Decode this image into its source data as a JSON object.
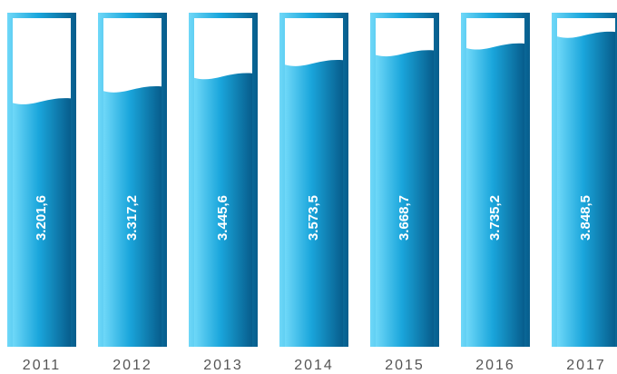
{
  "chart_data": {
    "type": "bar",
    "categories": [
      "2011",
      "2012",
      "2013",
      "2014",
      "2015",
      "2016",
      "2017"
    ],
    "values": [
      3201.6,
      3317.2,
      3445.6,
      3573.5,
      3668.7,
      3735.2,
      3848.5
    ],
    "value_labels": [
      "3.201,6",
      "3.317,2",
      "3.445,6",
      "3.573,5",
      "3.668,7",
      "3.735,2",
      "3.848,5"
    ],
    "color": "#1aa0d8",
    "ylim": [
      800,
      4000
    ]
  }
}
